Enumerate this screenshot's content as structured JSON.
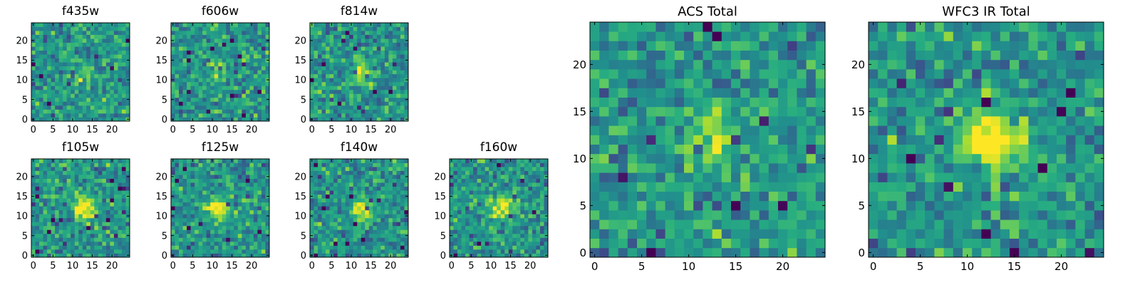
{
  "colormap": "viridis",
  "colors": {
    "viridis_low": "#440154",
    "viridis_mid": "#21918c",
    "viridis_high": "#fde725",
    "axis": "#000000"
  },
  "chart_data": [
    {
      "id": "f435w",
      "type": "heatmap",
      "title": "f435w",
      "grid_size": 25,
      "xlim": [
        -0.5,
        24.5
      ],
      "ylim": [
        -0.5,
        24.5
      ],
      "xticks": [
        0,
        5,
        10,
        15,
        20
      ],
      "yticks": [
        0,
        5,
        10,
        15,
        20
      ],
      "grid": false,
      "source_center": [
        13,
        11.5
      ],
      "source_strength": 0.18,
      "noise_seed": 11
    },
    {
      "id": "f606w",
      "type": "heatmap",
      "title": "f606w",
      "grid_size": 25,
      "xlim": [
        -0.5,
        24.5
      ],
      "ylim": [
        -0.5,
        24.5
      ],
      "xticks": [
        0,
        5,
        10,
        15,
        20
      ],
      "yticks": [
        0,
        5,
        10,
        15,
        20
      ],
      "grid": false,
      "source_center": [
        12,
        12
      ],
      "source_strength": 0.22,
      "noise_seed": 23
    },
    {
      "id": "f814w",
      "type": "heatmap",
      "title": "f814w",
      "grid_size": 25,
      "xlim": [
        -0.5,
        24.5
      ],
      "ylim": [
        -0.5,
        24.5
      ],
      "xticks": [
        0,
        5,
        10,
        15,
        20
      ],
      "yticks": [
        0,
        5,
        10,
        15,
        20
      ],
      "grid": false,
      "source_center": [
        13,
        12
      ],
      "source_strength": 0.35,
      "noise_seed": 37
    },
    {
      "id": "f105w",
      "type": "heatmap",
      "title": "f105w",
      "grid_size": 25,
      "xlim": [
        -0.5,
        24.5
      ],
      "ylim": [
        -0.5,
        24.5
      ],
      "xticks": [
        0,
        5,
        10,
        15,
        20
      ],
      "yticks": [
        0,
        5,
        10,
        15,
        20
      ],
      "grid": false,
      "source_center": [
        13,
        12
      ],
      "source_strength": 0.55,
      "noise_seed": 41
    },
    {
      "id": "f125w",
      "type": "heatmap",
      "title": "f125w",
      "grid_size": 25,
      "xlim": [
        -0.5,
        24.5
      ],
      "ylim": [
        -0.5,
        24.5
      ],
      "xticks": [
        0,
        5,
        10,
        15,
        20
      ],
      "yticks": [
        0,
        5,
        10,
        15,
        20
      ],
      "grid": false,
      "source_center": [
        11,
        11.5
      ],
      "source_strength": 0.5,
      "noise_seed": 53
    },
    {
      "id": "f140w",
      "type": "heatmap",
      "title": "f140w",
      "grid_size": 25,
      "xlim": [
        -0.5,
        24.5
      ],
      "ylim": [
        -0.5,
        24.5
      ],
      "xticks": [
        0,
        5,
        10,
        15,
        20
      ],
      "yticks": [
        0,
        5,
        10,
        15,
        20
      ],
      "grid": false,
      "source_center": [
        13,
        11
      ],
      "source_strength": 0.45,
      "noise_seed": 67
    },
    {
      "id": "f160w",
      "type": "heatmap",
      "title": "f160w",
      "grid_size": 25,
      "xlim": [
        -0.5,
        24.5
      ],
      "ylim": [
        -0.5,
        24.5
      ],
      "xticks": [
        0,
        5,
        10,
        15,
        20
      ],
      "yticks": [
        0,
        5,
        10,
        15,
        20
      ],
      "grid": false,
      "source_center": [
        13,
        12.5
      ],
      "source_strength": 0.5,
      "noise_seed": 79
    },
    {
      "id": "acs-total",
      "type": "heatmap",
      "title": "ACS Total",
      "grid_size": 25,
      "xlim": [
        -0.5,
        24.5
      ],
      "ylim": [
        -0.5,
        24.5
      ],
      "xticks": [
        0,
        5,
        10,
        15,
        20
      ],
      "yticks": [
        0,
        5,
        10,
        15,
        20
      ],
      "grid": false,
      "source_center": [
        12.5,
        12
      ],
      "source_strength": 0.32,
      "noise_seed": 97
    },
    {
      "id": "wfc3-ir-total",
      "type": "heatmap",
      "title": "WFC3 IR Total",
      "grid_size": 25,
      "xlim": [
        -0.5,
        24.5
      ],
      "ylim": [
        -0.5,
        24.5
      ],
      "xticks": [
        0,
        5,
        10,
        15,
        20
      ],
      "yticks": [
        0,
        5,
        10,
        15,
        20
      ],
      "grid": false,
      "source_center": [
        12.5,
        12
      ],
      "source_strength": 0.75,
      "noise_seed": 113
    }
  ]
}
